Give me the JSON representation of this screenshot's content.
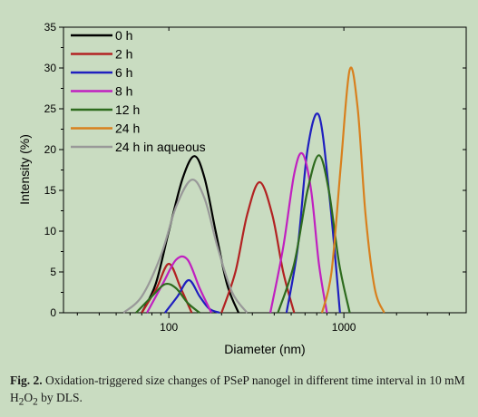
{
  "chart_data": {
    "type": "line",
    "xlabel": "Diameter (nm)",
    "ylabel": "Intensity (%)",
    "xscale": "log",
    "xlim": [
      25,
      5000
    ],
    "ylim": [
      0,
      35
    ],
    "xticks": [
      100,
      1000
    ],
    "xtick_labels": [
      "100",
      "1000"
    ],
    "yticks": [
      0,
      5,
      10,
      15,
      20,
      25,
      30,
      35
    ],
    "ytick_labels": [
      "0",
      "5",
      "10",
      "15",
      "20",
      "25",
      "30",
      "35"
    ],
    "legend_position": "top-left",
    "grid": false,
    "series": [
      {
        "name": "0 h",
        "color": "#000000",
        "x": [
          70,
          84,
          100,
          120,
          140,
          160,
          185,
          215,
          250
        ],
        "y": [
          0.0,
          3.5,
          10.0,
          16.5,
          19.2,
          16.5,
          10.0,
          3.5,
          0.0
        ]
      },
      {
        "name": "2 h",
        "color": "#b22222",
        "x": [
          70,
          85,
          100,
          117,
          135
        ],
        "y": [
          0.0,
          3.0,
          6.0,
          3.0,
          0.0
        ]
      },
      {
        "name": "2 h",
        "color": "#b22222",
        "x": [
          200,
          240,
          280,
          330,
          390,
          450,
          520
        ],
        "y": [
          0.0,
          5.0,
          12.0,
          16.0,
          12.0,
          5.0,
          0.0
        ]
      },
      {
        "name": "6 h",
        "color": "#1f1fbf",
        "x": [
          95,
          112,
          130,
          150,
          170,
          195
        ],
        "y": [
          0.0,
          2.0,
          4.0,
          2.0,
          0.5,
          0.0
        ]
      },
      {
        "name": "6 h",
        "color": "#1f1fbf",
        "x": [
          470,
          545,
          620,
          720,
          830,
          950
        ],
        "y": [
          0.0,
          8.0,
          20.0,
          24.2,
          14.0,
          0.0
        ]
      },
      {
        "name": "8 h",
        "color": "#c020c0",
        "x": [
          75,
          92,
          110,
          128,
          150,
          175
        ],
        "y": [
          0.0,
          3.5,
          6.5,
          6.5,
          3.0,
          0.0
        ]
      },
      {
        "name": "8 h",
        "color": "#c020c0",
        "x": [
          380,
          450,
          520,
          580,
          650,
          720,
          800
        ],
        "y": [
          0.0,
          8.0,
          17.0,
          19.5,
          15.0,
          6.0,
          0.0
        ]
      },
      {
        "name": "12 h",
        "color": "#2e6b1e",
        "x": [
          65,
          80,
          95,
          110,
          128,
          150
        ],
        "y": [
          0.0,
          2.0,
          3.5,
          3.0,
          1.2,
          0.0
        ]
      },
      {
        "name": "12 h",
        "color": "#2e6b1e",
        "x": [
          420,
          520,
          620,
          720,
          820,
          940,
          1080
        ],
        "y": [
          0.0,
          6.0,
          15.0,
          19.3,
          15.0,
          6.0,
          0.0
        ]
      },
      {
        "name": "24 h",
        "color": "#d8801e",
        "x": [
          750,
          850,
          960,
          1080,
          1200,
          1330,
          1500,
          1700
        ],
        "y": [
          0.0,
          5.0,
          18.0,
          29.8,
          25.0,
          12.0,
          3.0,
          0.0
        ]
      },
      {
        "name": "24 h in aqueous",
        "color": "#999999",
        "x": [
          55,
          70,
          90,
          110,
          135,
          160,
          190,
          230,
          280
        ],
        "y": [
          0.0,
          2.0,
          7.0,
          13.0,
          16.3,
          14.0,
          8.0,
          2.5,
          0.0
        ]
      }
    ],
    "legend_entries": [
      {
        "name": "0 h",
        "color": "#000000"
      },
      {
        "name": "2 h",
        "color": "#b22222"
      },
      {
        "name": "6 h",
        "color": "#1f1fbf"
      },
      {
        "name": "8 h",
        "color": "#c020c0"
      },
      {
        "name": "12 h",
        "color": "#2e6b1e"
      },
      {
        "name": "24 h",
        "color": "#d8801e"
      },
      {
        "name": "24 h in aqueous",
        "color": "#999999"
      }
    ]
  },
  "caption": {
    "label": "Fig. 2.",
    "text_before": "Oxidation-triggered size changes of PSeP nanogel in different time interval in 10 mM H",
    "sub": "2",
    "text_mid": "O",
    "sub2": "2",
    "text_after": " by DLS."
  }
}
